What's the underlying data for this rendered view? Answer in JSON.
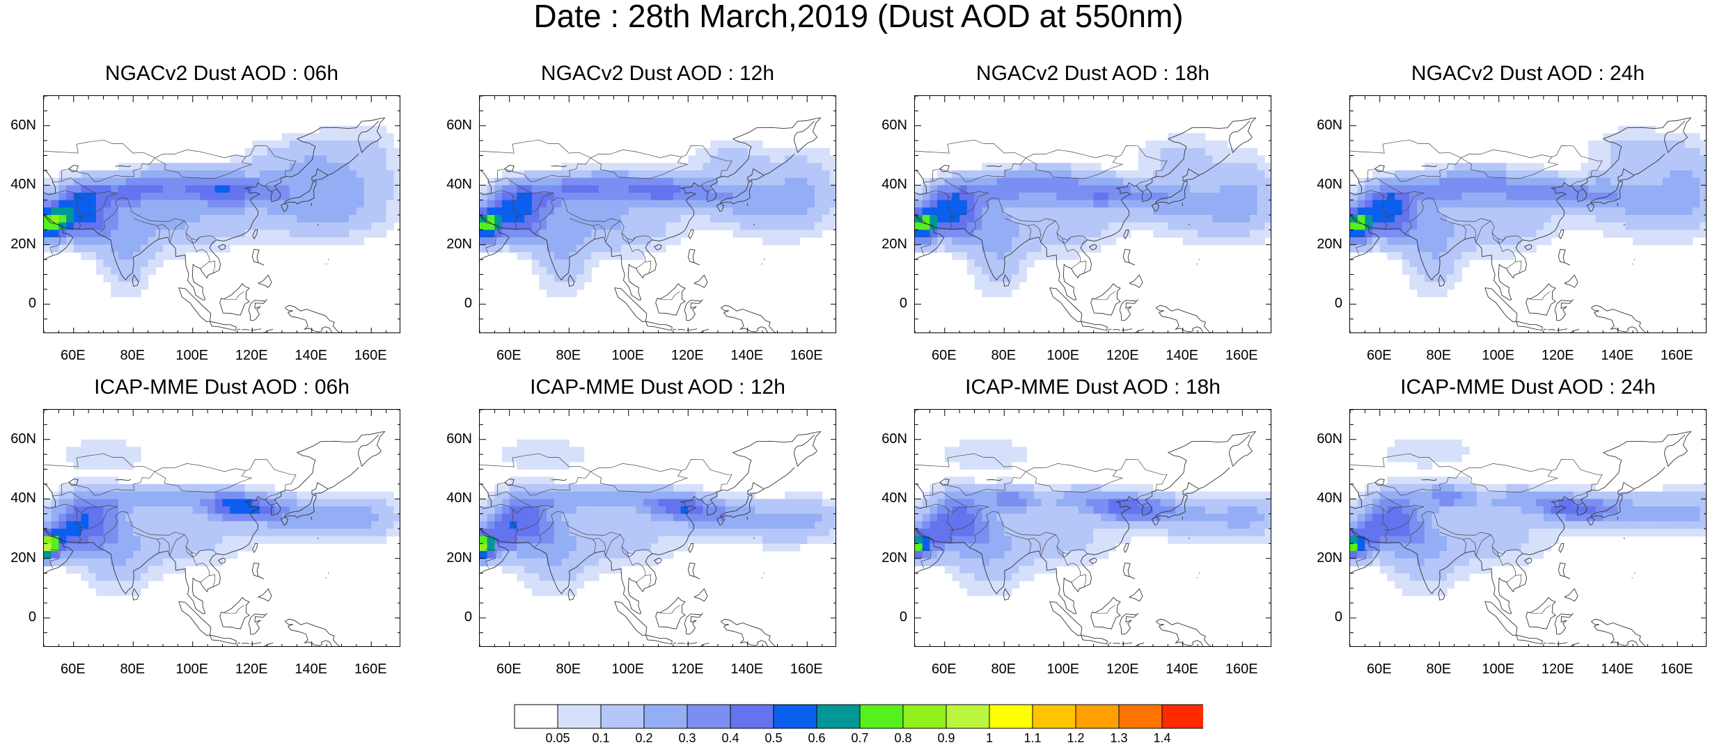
{
  "title": "Date : 28th March,2019 (Dust AOD at 550nm)",
  "panels": [
    {
      "title": "NGACv2 Dust AOD : 06h"
    },
    {
      "title": "NGACv2 Dust AOD : 12h"
    },
    {
      "title": "NGACv2 Dust AOD : 18h"
    },
    {
      "title": "NGACv2 Dust AOD : 24h"
    },
    {
      "title": "ICAP-MME Dust AOD : 06h"
    },
    {
      "title": "ICAP-MME Dust AOD : 12h"
    },
    {
      "title": "ICAP-MME Dust AOD : 18h"
    },
    {
      "title": "ICAP-MME Dust AOD : 24h"
    }
  ],
  "lat_ticks": [
    "60N",
    "40N",
    "20N",
    "0"
  ],
  "lon_ticks": [
    "60E",
    "80E",
    "100E",
    "120E",
    "140E",
    "160E"
  ],
  "lat_values": [
    60,
    40,
    20,
    0
  ],
  "lon_values": [
    60,
    80,
    100,
    120,
    140,
    160
  ],
  "extent": {
    "lon": [
      50,
      170
    ],
    "lat": [
      -10,
      70
    ]
  },
  "colorbar": {
    "labels": [
      "0.05",
      "0.1",
      "0.2",
      "0.3",
      "0.4",
      "0.5",
      "0.6",
      "0.7",
      "0.8",
      "0.9",
      "1",
      "1.1",
      "1.2",
      "1.3",
      "1.4"
    ],
    "colors": [
      "#ffffff",
      "#d6e0fb",
      "#b5c6f8",
      "#94aef5",
      "#7b8ff2",
      "#6473ee",
      "#0a5fef",
      "#009797",
      "#55f01e",
      "#90f01c",
      "#bcf53e",
      "#ffff00",
      "#ffc400",
      "#ff9f00",
      "#ff7300",
      "#ff2a00"
    ]
  }
}
